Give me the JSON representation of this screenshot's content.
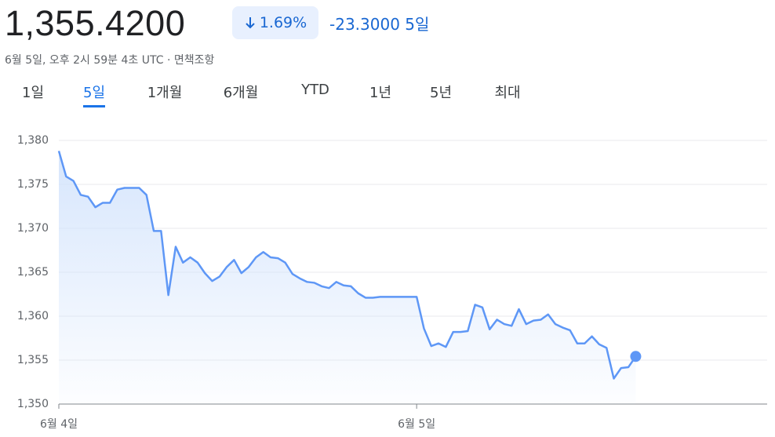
{
  "header": {
    "price": "1,355.4200",
    "change_pct": "1.69%",
    "change": "-23.3000",
    "period": "5일",
    "timestamp": "6월 5일, 오후 2시 59분 4초 UTC",
    "disclaimer": "면책조항"
  },
  "tabs": {
    "items": [
      "1일",
      "5일",
      "1개월",
      "6개월",
      "YTD",
      "1년",
      "5년",
      "최대"
    ],
    "selected": 1
  },
  "chart_data": {
    "type": "line",
    "color": "#5e97f6",
    "values": [
      1378.8,
      1375.9,
      1375.4,
      1373.8,
      1373.6,
      1372.4,
      1372.9,
      1372.9,
      1374.4,
      1374.6,
      1374.6,
      1374.6,
      1373.8,
      1369.7,
      1369.7,
      1362.4,
      1367.9,
      1366.1,
      1366.7,
      1366.1,
      1364.9,
      1364.0,
      1364.5,
      1365.6,
      1366.4,
      1364.9,
      1365.6,
      1366.7,
      1367.3,
      1366.7,
      1366.6,
      1366.1,
      1364.8,
      1364.3,
      1363.9,
      1363.8,
      1363.4,
      1363.2,
      1363.9,
      1363.5,
      1363.4,
      1362.6,
      1362.1,
      1362.1,
      1362.2,
      1362.2,
      1362.2,
      1362.2,
      1362.2,
      1362.2,
      1358.6,
      1356.6,
      1356.9,
      1356.5,
      1358.2,
      1358.2,
      1358.3,
      1361.3,
      1361.0,
      1358.5,
      1359.6,
      1359.1,
      1358.9,
      1360.8,
      1359.1,
      1359.5,
      1359.6,
      1360.2,
      1359.1,
      1358.7,
      1358.4,
      1356.9,
      1356.9,
      1357.7,
      1356.8,
      1356.4,
      1352.9,
      1354.1,
      1354.2,
      1355.42
    ],
    "xlim": [
      0,
      97
    ],
    "xticks": [
      {
        "value": 0,
        "label": "6월 4일"
      },
      {
        "value": 49,
        "label": "6월 5일"
      }
    ],
    "ylim": [
      1350,
      1380
    ],
    "yticks": [
      {
        "value": 1350,
        "label": "1,350"
      },
      {
        "value": 1355,
        "label": "1,355"
      },
      {
        "value": 1360,
        "label": "1,360"
      },
      {
        "value": 1365,
        "label": "1,365"
      },
      {
        "value": 1370,
        "label": "1,370"
      },
      {
        "value": 1375,
        "label": "1,375"
      },
      {
        "value": 1380,
        "label": "1,380"
      }
    ],
    "grid": true,
    "area_fill": true,
    "last_point_marker": true
  }
}
